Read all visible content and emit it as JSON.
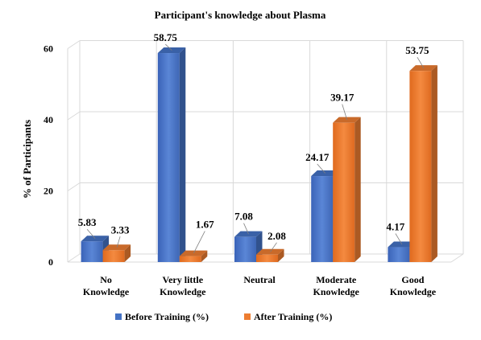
{
  "chart_data": {
    "type": "bar",
    "title": "Participant's  knowledge about Plasma",
    "ylabel": "%  of Participants",
    "xlabel": "",
    "ylim": [
      0,
      60
    ],
    "yticks": [
      0,
      20,
      40,
      60
    ],
    "grid": true,
    "legend_position": "bottom",
    "categories": [
      [
        "No",
        "Knowledge"
      ],
      [
        "Very little",
        "Knowledge"
      ],
      [
        "Neutral"
      ],
      [
        "Moderate",
        "Knowledge"
      ],
      [
        "Good",
        "Knowledge"
      ]
    ],
    "series": [
      {
        "name": "Before Training (%)",
        "color": "#4472C4",
        "values": [
          5.83,
          58.75,
          7.08,
          24.17,
          4.17
        ],
        "labels": [
          "5.83",
          "58.75",
          "7.08",
          "24.17",
          "4.17"
        ]
      },
      {
        "name": "After Training  (%)",
        "color": "#ED7D31",
        "values": [
          3.33,
          1.67,
          2.08,
          39.17,
          53.75
        ],
        "labels": [
          "3.33",
          "1.67",
          "2.08",
          "39.17",
          "53.75"
        ]
      }
    ]
  }
}
